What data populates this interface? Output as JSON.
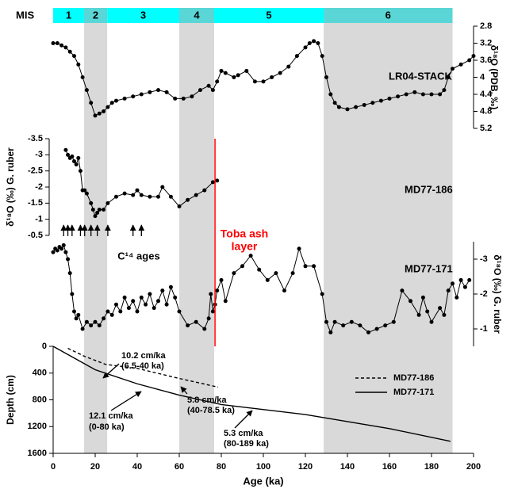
{
  "chart_data": {
    "type": "multi-panel",
    "xlabel": "Age (ka)",
    "xlim": [
      0,
      200
    ],
    "xticks": [
      0,
      20,
      40,
      60,
      80,
      100,
      120,
      140,
      160,
      180,
      200
    ],
    "mis_title": "MIS",
    "mis": [
      {
        "label": "1",
        "start": 0,
        "end": 14.7,
        "color": "#00ffff",
        "band": false
      },
      {
        "label": "2",
        "start": 14.7,
        "end": 25.7,
        "color": "#5ad6d6",
        "band": true
      },
      {
        "label": "3",
        "start": 25.7,
        "end": 60,
        "color": "#00ffff",
        "band": false
      },
      {
        "label": "4",
        "start": 60,
        "end": 76.6,
        "color": "#5ad6d6",
        "band": true
      },
      {
        "label": "5",
        "start": 76.6,
        "end": 128.7,
        "color": "#00ffff",
        "band": false
      },
      {
        "label": "6",
        "start": 128.7,
        "end": 190,
        "color": "#5ad6d6",
        "band": true
      }
    ],
    "band_color": "#d9d9d9",
    "toba_age": 77,
    "toba_color": "#ff0000",
    "c14_ages": [
      5,
      7,
      9,
      13,
      15,
      18,
      21,
      26,
      38,
      42
    ],
    "annotations": [
      "C¹⁴ ages",
      "Toba ash",
      "layer",
      "10.2 cm/ka",
      "(6.5-40 ka)",
      "5.8 cm/ka",
      "(40-78.5 ka)",
      "12.1 cm/ka",
      "(0-80 ka)",
      "5.3 cm/ka",
      "(80-189 ka)"
    ],
    "panels": [
      {
        "type": "line",
        "ylabel": "δ¹⁸O (PDB, ‰)",
        "ylim": [
          5.2,
          2.8
        ],
        "yticks": [
          2.8,
          3.2,
          3.6,
          4,
          4.4,
          4.8,
          5.2
        ],
        "side": "right",
        "markers": true,
        "series": [
          {
            "name": "LR04-STACK",
            "color": "#000000",
            "x": [
              0,
              2,
              4,
              6,
              8,
              10,
              12,
              14,
              16,
              18,
              20,
              22,
              24,
              26,
              28,
              30,
              34,
              38,
              42,
              46,
              50,
              54,
              58,
              62,
              66,
              70,
              74,
              76,
              78,
              80,
              82,
              86,
              88,
              92,
              96,
              100,
              104,
              108,
              112,
              116,
              120,
              122,
              124,
              126,
              128,
              130,
              132,
              134,
              136,
              140,
              144,
              148,
              152,
              156,
              160,
              164,
              168,
              172,
              176,
              180,
              184,
              186,
              188,
              190,
              194,
              198,
              200
            ],
            "values": [
              3.2,
              3.2,
              3.25,
              3.3,
              3.4,
              3.5,
              3.7,
              4.0,
              4.3,
              4.6,
              4.9,
              4.85,
              4.8,
              4.7,
              4.6,
              4.55,
              4.5,
              4.45,
              4.4,
              4.35,
              4.3,
              4.35,
              4.5,
              4.5,
              4.45,
              4.3,
              4.2,
              4.3,
              4.1,
              3.85,
              3.9,
              4.0,
              3.95,
              3.85,
              4.1,
              4.1,
              4.0,
              3.9,
              3.75,
              3.5,
              3.3,
              3.2,
              3.15,
              3.2,
              3.5,
              4.0,
              4.4,
              4.6,
              4.7,
              4.75,
              4.7,
              4.65,
              4.6,
              4.55,
              4.5,
              4.45,
              4.4,
              4.35,
              4.4,
              4.4,
              4.4,
              4.3,
              4.0,
              3.8,
              3.7,
              3.6,
              3.5
            ]
          }
        ]
      },
      {
        "type": "line",
        "ylabel": "δ¹⁸O (‰) G. ruber",
        "ylim": [
          -0.5,
          -3.5
        ],
        "yticks": [
          -3.5,
          -3,
          -2.5,
          -2,
          -1.5,
          -1,
          -0.5
        ],
        "side": "left",
        "markers": true,
        "series": [
          {
            "name": "MD77-186",
            "color": "#000000",
            "x": [
              6,
              7,
              8,
              9,
              10,
              11,
              12,
              13,
              14,
              15,
              16,
              18,
              19,
              20,
              21,
              22,
              24,
              26,
              30,
              34,
              38,
              40,
              42,
              46,
              50,
              52,
              56,
              60,
              64,
              68,
              72,
              76,
              78
            ],
            "values": [
              -3.15,
              -3.0,
              -2.9,
              -2.95,
              -2.8,
              -2.7,
              -2.9,
              -2.5,
              -1.9,
              -1.9,
              -1.8,
              -1.5,
              -1.3,
              -1.1,
              -1.2,
              -1.3,
              -1.3,
              -1.5,
              -1.7,
              -1.8,
              -1.75,
              -1.9,
              -1.75,
              -1.7,
              -1.7,
              -2.0,
              -1.7,
              -1.4,
              -1.6,
              -1.75,
              -1.9,
              -2.15,
              -2.2
            ]
          }
        ]
      },
      {
        "type": "line",
        "ylabel": "δ¹⁸O (‰) G. ruber",
        "ylim": [
          -0.5,
          -3.5
        ],
        "yticks": [
          -3,
          -2,
          -1
        ],
        "side": "right",
        "markers": true,
        "series": [
          {
            "name": "MD77-171",
            "color": "#000000",
            "x": [
              0,
              1,
              2,
              3,
              4,
              5,
              6,
              7,
              8,
              9,
              10,
              11,
              12,
              14,
              16,
              18,
              20,
              22,
              24,
              26,
              28,
              30,
              32,
              34,
              36,
              38,
              40,
              42,
              44,
              46,
              48,
              50,
              52,
              54,
              56,
              58,
              60,
              64,
              68,
              72,
              74,
              75,
              76,
              77,
              78,
              80,
              82,
              86,
              90,
              94,
              98,
              102,
              106,
              110,
              114,
              117,
              120,
              124,
              128,
              130,
              132,
              134,
              138,
              142,
              146,
              150,
              154,
              158,
              162,
              166,
              170,
              174,
              176,
              178,
              180,
              184,
              186,
              188,
              190,
              192,
              194,
              196,
              198
            ],
            "values": [
              -3.2,
              -3.3,
              -3.25,
              -3.35,
              -3.3,
              -3.4,
              -3.2,
              -3.0,
              -2.6,
              -2.0,
              -1.5,
              -1.3,
              -1.4,
              -1.0,
              -1.2,
              -1.1,
              -1.2,
              -1.1,
              -1.3,
              -1.5,
              -1.4,
              -1.7,
              -1.5,
              -1.9,
              -1.6,
              -1.8,
              -1.5,
              -1.9,
              -1.7,
              -2.0,
              -1.6,
              -1.8,
              -2.1,
              -1.7,
              -2.2,
              -1.9,
              -1.5,
              -1.1,
              -1.2,
              -1.0,
              -1.3,
              -2.0,
              -1.5,
              -1.7,
              -2.1,
              -2.4,
              -1.8,
              -2.6,
              -2.8,
              -3.1,
              -2.7,
              -2.4,
              -2.6,
              -2.1,
              -2.6,
              -3.3,
              -2.8,
              -2.8,
              -2.0,
              -1.2,
              -0.9,
              -1.2,
              -1.1,
              -1.2,
              -1.1,
              -0.9,
              -1.0,
              -1.1,
              -1.2,
              -2.1,
              -1.8,
              -1.4,
              -1.9,
              -1.5,
              -1.2,
              -1.6,
              -1.4,
              -2.1,
              -2.3,
              -1.9,
              -2.4,
              -2.2,
              -2.4
            ]
          }
        ]
      },
      {
        "type": "line",
        "ylabel": "Depth (cm)",
        "ylim": [
          1600,
          0
        ],
        "yticks": [
          0,
          400,
          800,
          1200,
          1600
        ],
        "side": "left",
        "markers": false,
        "legend": true,
        "series": [
          {
            "name": "MD77-186",
            "color": "#000000",
            "dashed": true,
            "x": [
              7,
              15,
              25,
              40,
              60,
              78.5
            ],
            "values": [
              30,
              150,
              270,
              330,
              480,
              610
            ]
          },
          {
            "name": "MD77-171",
            "color": "#000000",
            "dashed": false,
            "x": [
              0,
              20,
              40,
              60,
              80,
              120,
              160,
              189
            ],
            "values": [
              0,
              350,
              560,
              730,
              870,
              1020,
              1230,
              1420
            ]
          }
        ]
      }
    ]
  }
}
